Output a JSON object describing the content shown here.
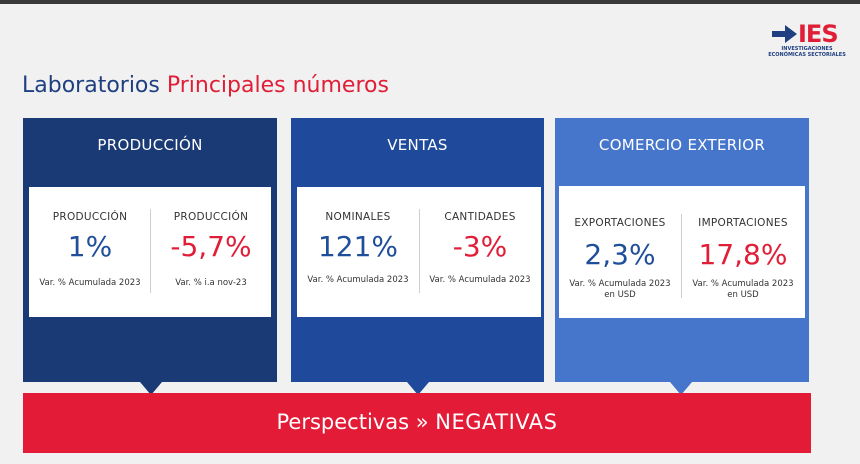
{
  "logo": {
    "text": "IES",
    "subtitle": "INVESTIGACIONES ECONÓMICAS SECTORIALES"
  },
  "title": {
    "part1": "Laboratorios",
    "part2": "Principales números"
  },
  "panels": [
    {
      "title": "PRODUCCIÓN",
      "color": "#193a75",
      "left": {
        "label": "PRODUCCIÓN",
        "value": "1%",
        "note": "Var. % Acumulada 2023"
      },
      "right": {
        "label": "PRODUCCIÓN",
        "value": "-5,7%",
        "note": "Var. % i.a nov-23"
      }
    },
    {
      "title": "VENTAS",
      "color": "#1f4a9c",
      "left": {
        "label": "NOMINALES",
        "value": "121%",
        "note": "Var. % Acumulada 2023"
      },
      "right": {
        "label": "CANTIDADES",
        "value": "-3%",
        "note": "Var. % Acumulada 2023"
      }
    },
    {
      "title": "COMERCIO EXTERIOR",
      "color": "#4676cb",
      "left": {
        "label": "EXPORTACIONES",
        "value": "2,3%",
        "note_line1": "Var. % Acumulada 2023",
        "note_line2": "en USD"
      },
      "right": {
        "label": "IMPORTACIONES",
        "value": "17,8%",
        "note_line1": "Var. % Acumulada 2023",
        "note_line2": "en USD"
      }
    }
  ],
  "banner": {
    "label": "Perspectivas »",
    "value": "NEGATIVAS",
    "color": "#e31b36"
  }
}
